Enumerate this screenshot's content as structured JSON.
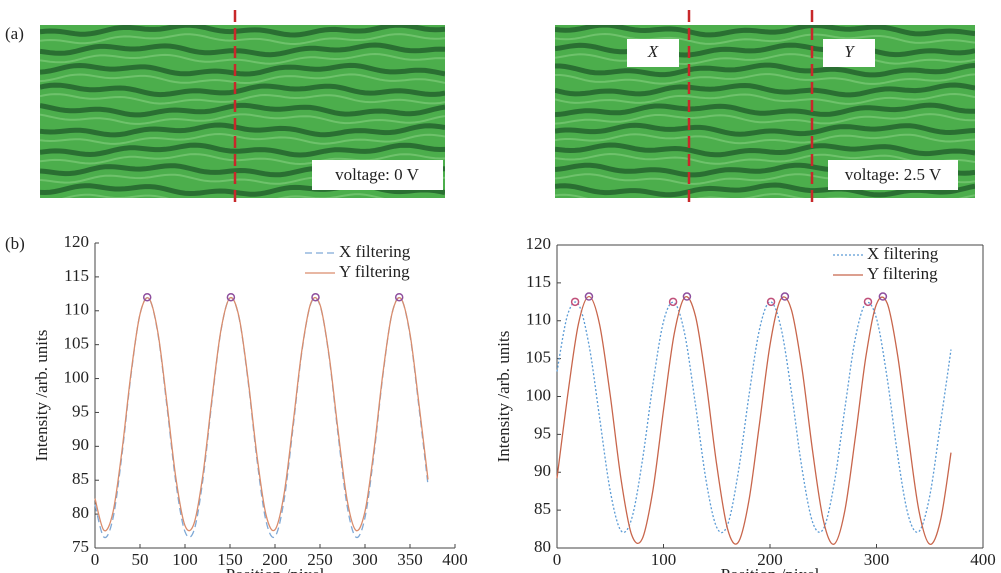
{
  "panels": [
    "(a)",
    "(b)"
  ],
  "image_labels": [
    "voltage: 0 V",
    "X",
    "Y",
    "voltage: 2.5 V"
  ],
  "chart_data": [
    {
      "type": "line",
      "xlabel": "Position /pixel",
      "ylabel": "Intensity /arb. units",
      "xlim": [
        0,
        400
      ],
      "xticks": [
        0,
        50,
        100,
        150,
        200,
        250,
        300,
        350,
        400
      ],
      "ylim": [
        75,
        120
      ],
      "yticks": [
        75,
        80,
        85,
        90,
        95,
        100,
        105,
        110,
        115,
        120
      ],
      "legend": "upper right",
      "frame": false,
      "x": [
        0,
        10,
        20,
        30,
        40,
        50,
        60,
        70,
        80,
        90,
        100,
        110,
        120,
        130,
        140,
        150,
        160,
        170,
        180,
        190,
        200,
        210,
        220,
        230,
        240,
        250,
        260,
        270,
        280,
        290,
        300,
        310,
        320,
        330,
        340,
        350,
        360,
        370
      ],
      "series": [
        {
          "name": "X filtering",
          "color": "#7fa9d6",
          "dash": "dashed",
          "values": [
            81.4,
            76.6,
            79.4,
            88.8,
            100.5,
            109.5,
            111.8,
            106.5,
            95.8,
            84.5,
            77.4,
            77.6,
            85.2,
            96.7,
            107.1,
            111.9,
            109.0,
            99.7,
            88.0,
            79.0,
            76.7,
            82.0,
            92.7,
            104.1,
            111.1,
            110.8,
            103.3,
            91.8,
            81.3,
            76.6,
            79.5,
            88.9,
            100.6,
            109.6,
            111.8,
            106.4,
            95.7,
            84.3
          ]
        },
        {
          "name": "Y filtering",
          "color": "#d98c6c",
          "dash": "solid",
          "values": [
            82.3,
            77.6,
            80.3,
            89.4,
            100.8,
            109.5,
            111.8,
            106.7,
            96.3,
            85.2,
            78.3,
            78.6,
            85.9,
            97.1,
            107.2,
            111.9,
            109.1,
            100.0,
            88.6,
            79.9,
            77.7,
            82.9,
            93.3,
            104.3,
            111.2,
            110.9,
            103.5,
            92.4,
            82.2,
            77.6,
            80.4,
            89.5,
            100.9,
            109.6,
            111.8,
            106.6,
            96.2,
            85.1
          ]
        }
      ],
      "peaks": [
        {
          "color": "#8e4f9e",
          "x": [
            58,
            151,
            245,
            338
          ],
          "values": [
            112,
            112,
            112,
            112
          ]
        }
      ]
    },
    {
      "type": "line",
      "xlabel": "Position /pixel",
      "ylabel": "Intensity /arb. units",
      "xlim": [
        0,
        400
      ],
      "xticks": [
        0,
        100,
        200,
        300,
        400
      ],
      "ylim": [
        80,
        120
      ],
      "yticks": [
        80,
        85,
        90,
        95,
        100,
        105,
        110,
        115,
        120
      ],
      "legend": "upper right",
      "frame": true,
      "x": [
        0,
        10,
        20,
        30,
        40,
        50,
        60,
        70,
        80,
        90,
        100,
        110,
        120,
        130,
        140,
        150,
        160,
        170,
        180,
        190,
        200,
        210,
        220,
        230,
        240,
        250,
        260,
        270,
        280,
        290,
        300,
        310,
        320,
        330,
        340,
        350,
        360,
        370
      ],
      "series": [
        {
          "name": "X filtering",
          "color": "#5b9bd5",
          "dash": "dotted",
          "values": [
            103.3,
            110.8,
            112.2,
            106.8,
            97.2,
            87.5,
            82.3,
            83.8,
            91.4,
            101.6,
            109.9,
            112.4,
            108.2,
            98.9,
            88.9,
            82.7,
            83.0,
            89.8,
            99.9,
            108.8,
            112.5,
            109.3,
            100.7,
            90.5,
            83.4,
            82.5,
            88.3,
            98.1,
            107.6,
            112.3,
            110.3,
            102.4,
            92.1,
            84.2,
            82.2,
            86.9,
            96.4,
            106.2
          ]
        },
        {
          "name": "Y filtering",
          "color": "#c8664c",
          "dash": "solid",
          "values": [
            89.2,
            100.1,
            109.5,
            113.2,
            109.5,
            100.1,
            89.2,
            81.8,
            81.2,
            87.6,
            98.2,
            108.2,
            113.1,
            110.6,
            101.9,
            90.9,
            82.6,
            80.7,
            86.1,
            96.3,
            106.8,
            112.8,
            111.5,
            103.7,
            92.8,
            83.7,
            80.5,
            84.7,
            94.5,
            105.2,
            112.2,
            112.3,
            105.3,
            94.6,
            84.8,
            80.5,
            83.6,
            92.6
          ]
        }
      ],
      "peaks": [
        {
          "color": "#c0507a",
          "x": [
            17,
            109,
            201,
            292
          ],
          "values": [
            112.5,
            112.5,
            112.5,
            112.5
          ]
        },
        {
          "color": "#8e4f9e",
          "x": [
            30,
            122,
            214,
            306
          ],
          "values": [
            113.2,
            113.2,
            113.2,
            113.2
          ]
        }
      ]
    }
  ]
}
